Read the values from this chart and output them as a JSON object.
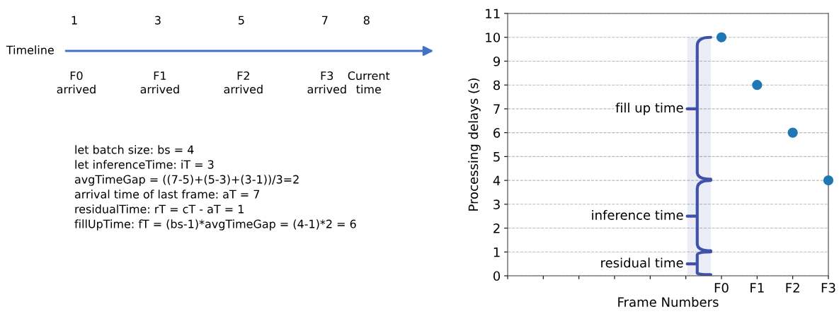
{
  "chart_data": [
    {
      "type": "other",
      "ylabel": "Timeline",
      "categories": [
        "F0\narrived",
        "F1\narrived",
        "F2\narrived",
        "F3\narrived",
        "Current\ntime"
      ],
      "value_labels": [
        "1",
        "3",
        "5",
        "7",
        "8"
      ],
      "color": "#4472c4",
      "annotations": [
        "let batch size: bs = 4",
        "let inferenceTime: iT = 3",
        "avgTimeGap = ((7-5)+(5-3)+(3-1))/3=2",
        "arrival time of last frame: aT = 7",
        "residualTime: rT = cT - aT = 1",
        "fillUpTime: fT = (bs-1)*avgTimeGap = (4-1)*2 = 6"
      ]
    },
    {
      "type": "scatter",
      "xlabel": "Frame Numbers",
      "ylabel": "Processing delays (s)",
      "categories": [
        null,
        null,
        null,
        null,
        null,
        null,
        "F0",
        "F1",
        "F2",
        "F3"
      ],
      "values": [
        null,
        null,
        null,
        null,
        null,
        null,
        10,
        8,
        6,
        4
      ],
      "color": "#1f77b4",
      "marker": "circle",
      "grid": "y",
      "ylim": [
        0,
        11
      ],
      "yticks": [
        0,
        1,
        2,
        3,
        4,
        5,
        6,
        7,
        8,
        9,
        10,
        11
      ],
      "bands": [
        {
          "axis": "y",
          "from": 4,
          "to": 10,
          "label": "fill up time",
          "color": "#3f51a8"
        },
        {
          "axis": "y",
          "from": 1,
          "to": 4,
          "label": "inference time",
          "color": "#3f51a8"
        },
        {
          "axis": "y",
          "from": 0,
          "to": 1,
          "label": "residual time",
          "color": "#3f51a8"
        }
      ]
    }
  ]
}
